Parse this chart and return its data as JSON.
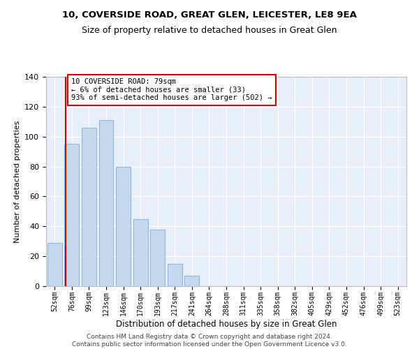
{
  "title": "10, COVERSIDE ROAD, GREAT GLEN, LEICESTER, LE8 9EA",
  "subtitle": "Size of property relative to detached houses in Great Glen",
  "xlabel": "Distribution of detached houses by size in Great Glen",
  "ylabel": "Number of detached properties",
  "categories": [
    "52sqm",
    "76sqm",
    "99sqm",
    "123sqm",
    "146sqm",
    "170sqm",
    "193sqm",
    "217sqm",
    "241sqm",
    "264sqm",
    "288sqm",
    "311sqm",
    "335sqm",
    "358sqm",
    "382sqm",
    "405sqm",
    "429sqm",
    "452sqm",
    "476sqm",
    "499sqm",
    "523sqm"
  ],
  "values": [
    29,
    95,
    106,
    111,
    80,
    45,
    38,
    15,
    7,
    0,
    0,
    0,
    0,
    0,
    0,
    0,
    0,
    0,
    0,
    0,
    0
  ],
  "bar_color": "#c5d8f0",
  "bar_edgecolor": "#7aadd4",
  "highlight_color": "#cc0000",
  "annotation_line1": "10 COVERSIDE ROAD: 79sqm",
  "annotation_line2": "← 6% of detached houses are smaller (33)",
  "annotation_line3": "93% of semi-detached houses are larger (502) →",
  "annotation_box_color": "#ffffff",
  "annotation_box_edgecolor": "#cc0000",
  "ylim": [
    0,
    140
  ],
  "yticks": [
    0,
    20,
    40,
    60,
    80,
    100,
    120,
    140
  ],
  "footer": "Contains HM Land Registry data © Crown copyright and database right 2024.\nContains public sector information licensed under the Open Government Licence v3.0.",
  "title_fontsize": 9.5,
  "subtitle_fontsize": 9,
  "xlabel_fontsize": 8.5,
  "ylabel_fontsize": 8,
  "tick_fontsize": 7,
  "annotation_fontsize": 7.5,
  "footer_fontsize": 6.5
}
